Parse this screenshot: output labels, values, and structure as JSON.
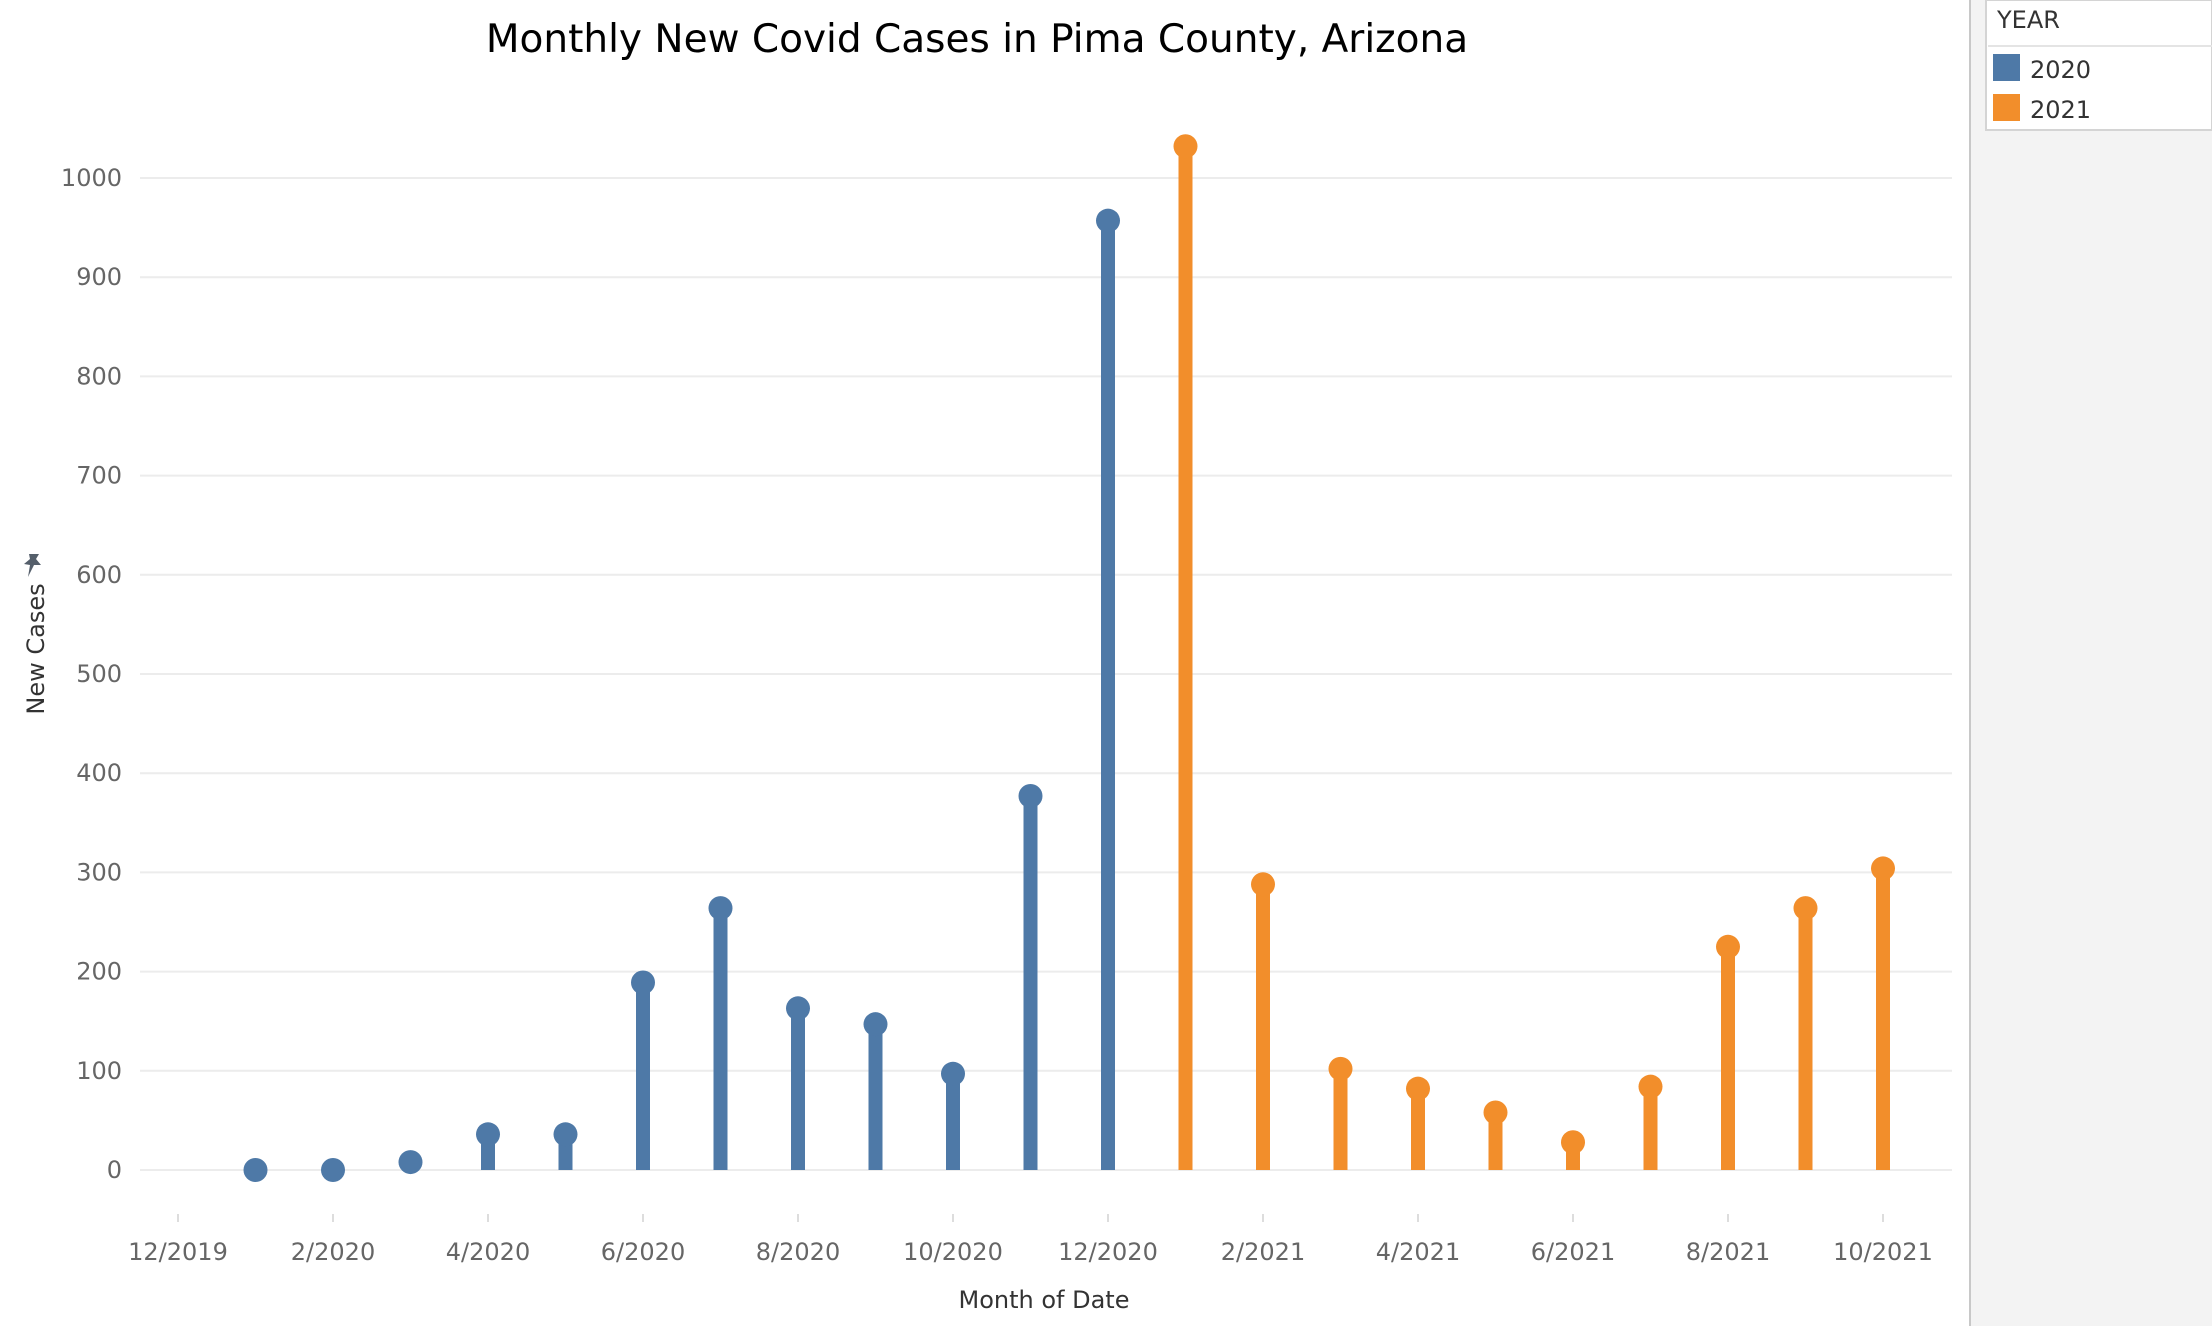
{
  "chart_data": {
    "type": "lollipop",
    "title": "Monthly New Covid Cases in Pima County, Arizona",
    "xlabel": "Month of Date",
    "ylabel": "New Cases",
    "ylim": [
      0,
      1000
    ],
    "yticks": [
      0,
      100,
      200,
      300,
      400,
      500,
      600,
      700,
      800,
      900,
      1000
    ],
    "xticks": [
      "12/2019",
      "2/2020",
      "4/2020",
      "6/2020",
      "8/2020",
      "10/2020",
      "12/2020",
      "2/2021",
      "4/2021",
      "6/2021",
      "8/2021",
      "10/2021"
    ],
    "grid": "horizontal",
    "legend": {
      "title": "YEAR",
      "placement": "right",
      "entries": [
        {
          "name": "2020",
          "color": "#4e79a7"
        },
        {
          "name": "2021",
          "color": "#f28e2b"
        }
      ]
    },
    "series": [
      {
        "name": "2020",
        "color": "#4e79a7",
        "x": [
          "1/2020",
          "2/2020",
          "3/2020",
          "4/2020",
          "5/2020",
          "6/2020",
          "7/2020",
          "8/2020",
          "9/2020",
          "10/2020",
          "11/2020",
          "12/2020"
        ],
        "values": [
          0,
          0,
          8,
          36,
          36,
          189,
          264,
          163,
          147,
          97,
          377,
          957
        ]
      },
      {
        "name": "2021",
        "color": "#f28e2b",
        "x": [
          "1/2021",
          "2/2021",
          "3/2021",
          "4/2021",
          "5/2021",
          "6/2021",
          "7/2021",
          "8/2021",
          "9/2021",
          "10/2021"
        ],
        "values": [
          1032,
          288,
          102,
          82,
          58,
          28,
          84,
          225,
          264,
          304
        ]
      }
    ]
  },
  "icons": {
    "axis_pin": "pin-icon"
  }
}
